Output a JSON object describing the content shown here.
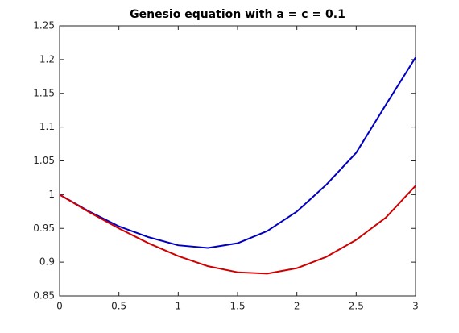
{
  "chart_data": {
    "type": "line",
    "title": "Genesio equation with a = c = 0.1",
    "x": [
      0,
      0.25,
      0.5,
      0.75,
      1,
      1.25,
      1.5,
      1.75,
      2,
      2.25,
      2.5,
      2.75,
      3
    ],
    "series": [
      {
        "color": "#0000c0",
        "values": [
          1.0,
          0.975,
          0.953,
          0.937,
          0.925,
          0.921,
          0.928,
          0.946,
          0.975,
          1.015,
          1.062,
          1.133,
          1.203
        ]
      },
      {
        "color": "#d00000",
        "values": [
          1.0,
          0.974,
          0.95,
          0.928,
          0.909,
          0.894,
          0.885,
          0.883,
          0.891,
          0.908,
          0.933,
          0.966,
          1.013
        ]
      }
    ],
    "xlim": [
      0,
      3
    ],
    "xticks": [
      0,
      0.5,
      1,
      1.5,
      2,
      2.5,
      3
    ],
    "ylim": [
      0.85,
      1.25
    ],
    "yticks": [
      0.85,
      0.9,
      0.95,
      1,
      1.05,
      1.1,
      1.15,
      1.2,
      1.25
    ],
    "grid": false
  }
}
